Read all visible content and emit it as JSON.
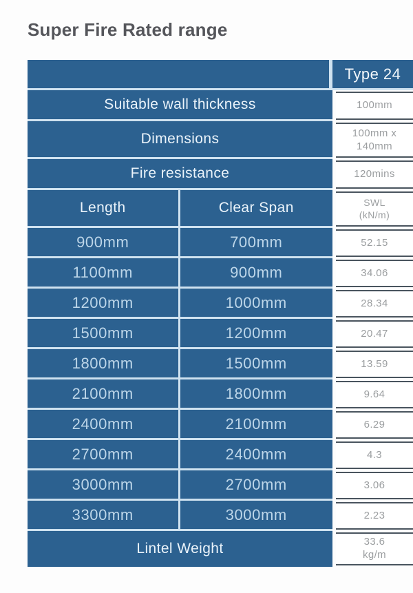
{
  "page": {
    "title": "Super Fire Rated range"
  },
  "colors": {
    "table_blue": "#2c6190",
    "light_separator": "#cfe2f0",
    "title_gray": "#55565b",
    "value_text_gray": "#9b9ea0",
    "dark_rule": "#49545e",
    "blue_label_text": "#eaf3fa",
    "blue_data_text": "#bdd6e9"
  },
  "table": {
    "type_header": "Type 24",
    "spec_rows": [
      {
        "label": "Suitable wall thickness",
        "value_line1": "100mm",
        "value_line2": ""
      },
      {
        "label": "Dimensions",
        "value_line1": "100mm x",
        "value_line2": "140mm"
      },
      {
        "label": "Fire resistance",
        "value_line1": "120mins",
        "value_line2": ""
      }
    ],
    "columns": {
      "length": "Length",
      "clear_span": "Clear Span",
      "swl_line1": "SWL",
      "swl_line2": "(kN/m)"
    },
    "data_rows": [
      {
        "length": "900mm",
        "clear_span": "700mm",
        "swl": "52.15"
      },
      {
        "length": "1100mm",
        "clear_span": "900mm",
        "swl": "34.06"
      },
      {
        "length": "1200mm",
        "clear_span": "1000mm",
        "swl": "28.34"
      },
      {
        "length": "1500mm",
        "clear_span": "1200mm",
        "swl": "20.47"
      },
      {
        "length": "1800mm",
        "clear_span": "1500mm",
        "swl": "13.59"
      },
      {
        "length": "2100mm",
        "clear_span": "1800mm",
        "swl": "9.64"
      },
      {
        "length": "2400mm",
        "clear_span": "2100mm",
        "swl": "6.29"
      },
      {
        "length": "2700mm",
        "clear_span": "2400mm",
        "swl": "4.3"
      },
      {
        "length": "3000mm",
        "clear_span": "2700mm",
        "swl": "3.06"
      },
      {
        "length": "3300mm",
        "clear_span": "3000mm",
        "swl": "2.23"
      }
    ],
    "footer": {
      "label": "Lintel Weight",
      "value_line1": "33.6",
      "value_line2": "kg/m"
    }
  },
  "chart_data": {
    "type": "table",
    "title": "Super Fire Rated range",
    "columns": [
      "Length",
      "Clear Span",
      "SWL (kN/m)"
    ],
    "specs": {
      "type": "Type 24",
      "suitable_wall_thickness": "100mm",
      "dimensions": "100mm x 140mm",
      "fire_resistance": "120mins",
      "lintel_weight": "33.6 kg/m"
    },
    "rows": [
      [
        "900mm",
        "700mm",
        52.15
      ],
      [
        "1100mm",
        "900mm",
        34.06
      ],
      [
        "1200mm",
        "1000mm",
        28.34
      ],
      [
        "1500mm",
        "1200mm",
        20.47
      ],
      [
        "1800mm",
        "1500mm",
        13.59
      ],
      [
        "2100mm",
        "1800mm",
        9.64
      ],
      [
        "2400mm",
        "2100mm",
        6.29
      ],
      [
        "2700mm",
        "2400mm",
        4.3
      ],
      [
        "3000mm",
        "2700mm",
        3.06
      ],
      [
        "3300mm",
        "3000mm",
        2.23
      ]
    ]
  }
}
